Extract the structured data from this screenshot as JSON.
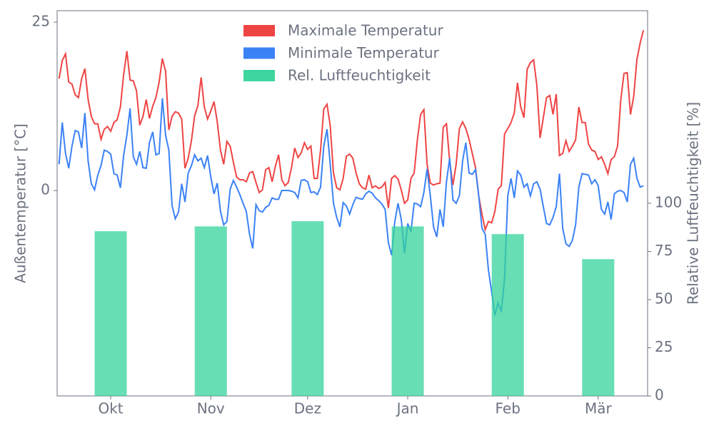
{
  "chart_data": {
    "type": "line",
    "legend": "upper center",
    "ylabel": "Außentemperatur [°C]",
    "y2label": "Relative Luftfeuchtigkeit [%]",
    "xlim": [
      13.4,
      196.3
    ],
    "xticks": [
      {
        "value": 30,
        "label": "Okt"
      },
      {
        "value": 61,
        "label": "Nov"
      },
      {
        "value": 91,
        "label": "Dez"
      },
      {
        "value": 122,
        "label": "Jan"
      },
      {
        "value": 153,
        "label": "Feb"
      },
      {
        "value": 181,
        "label": "Mär"
      }
    ],
    "ylim": [
      -30.5,
      26.7
    ],
    "yticks": [
      0,
      25
    ],
    "y2lim": [
      0,
      200
    ],
    "y2ticks": [
      0,
      25,
      50,
      75,
      100
    ],
    "x": [
      14,
      15,
      16,
      17,
      18,
      19,
      20,
      21,
      22,
      23,
      24,
      25,
      26,
      27,
      28,
      29,
      30,
      31,
      32,
      33,
      34,
      35,
      36,
      37,
      38,
      39,
      40,
      41,
      42,
      43,
      44,
      45,
      46,
      47,
      48,
      49,
      50,
      51,
      52,
      53,
      54,
      55,
      56,
      57,
      58,
      59,
      60,
      61,
      62,
      63,
      64,
      65,
      66,
      67,
      68,
      69,
      70,
      71,
      72,
      73,
      74,
      75,
      76,
      77,
      78,
      79,
      80,
      81,
      82,
      83,
      84,
      85,
      86,
      87,
      88,
      89,
      90,
      91,
      92,
      93,
      94,
      95,
      96,
      97,
      98,
      99,
      100,
      101,
      102,
      103,
      104,
      105,
      106,
      107,
      108,
      109,
      110,
      111,
      112,
      113,
      114,
      115,
      116,
      117,
      118,
      119,
      120,
      121,
      122,
      123,
      124,
      125,
      126,
      127,
      128,
      129,
      130,
      131,
      132,
      133,
      134,
      135,
      136,
      137,
      138,
      139,
      140,
      141,
      142,
      143,
      144,
      145,
      146,
      147,
      148,
      149,
      150,
      151,
      152,
      153,
      154,
      155,
      156,
      157,
      158,
      159,
      160,
      161,
      162,
      163,
      164,
      165,
      166,
      167,
      168,
      169,
      170,
      171,
      172,
      173,
      174,
      175,
      176,
      177,
      178,
      179,
      180,
      181,
      182,
      183,
      184,
      185,
      186,
      187,
      188,
      189,
      190,
      191,
      192,
      193,
      194,
      195
    ],
    "series": [
      {
        "name": "Maximale Temperatur",
        "color": "#ef4444",
        "values": [
          16.6,
          19.3,
          20.3,
          16.1,
          15.8,
          14.2,
          13.8,
          16.6,
          18.1,
          13.5,
          11.0,
          9.9,
          9.9,
          7.6,
          9.1,
          9.5,
          8.8,
          10.1,
          10.5,
          12.4,
          17.2,
          20.7,
          16.4,
          16.3,
          14.8,
          9.7,
          11.0,
          13.5,
          10.7,
          12.5,
          13.8,
          16.1,
          19.6,
          17.7,
          9.0,
          11.0,
          11.7,
          11.5,
          10.6,
          3.3,
          4.8,
          7.4,
          11.1,
          12.6,
          16.8,
          12.4,
          10.6,
          11.8,
          13.2,
          10.2,
          6.0,
          3.9,
          7.3,
          6.6,
          4.2,
          2.0,
          1.6,
          1.6,
          1.3,
          2.6,
          2.8,
          1.2,
          -0.3,
          0.1,
          3.1,
          3.4,
          1.3,
          3.6,
          5.3,
          1.6,
          0.7,
          1.2,
          3.4,
          6.3,
          4.9,
          5.6,
          7.1,
          6.1,
          6.6,
          1.8,
          1.8,
          6.0,
          12.1,
          12.8,
          9.6,
          2.6,
          0.4,
          0.1,
          1.8,
          5.1,
          5.4,
          4.8,
          2.6,
          1.0,
          0.4,
          0.2,
          2.3,
          0.4,
          0.7,
          0.3,
          0.5,
          1.2,
          -2.6,
          1.8,
          2.2,
          1.7,
          0.1,
          -1.9,
          -1.4,
          1.8,
          2.6,
          7.6,
          11.3,
          12.0,
          3.9,
          1.1,
          0.8,
          1.0,
          1.1,
          9.4,
          9.9,
          4.3,
          0.8,
          3.9,
          9.2,
          10.2,
          9.2,
          7.6,
          5.5,
          3.4,
          -0.8,
          -3.5,
          -5.8,
          -4.6,
          -4.8,
          -3.1,
          0.2,
          0.7,
          8.4,
          9.2,
          10.1,
          11.5,
          16.0,
          12.4,
          10.8,
          18.0,
          19.0,
          19.4,
          15.6,
          7.8,
          10.8,
          13.8,
          14.1,
          11.3,
          14.3,
          5.2,
          5.5,
          7.4,
          5.8,
          6.6,
          7.5,
          12.4,
          10.1,
          10.1,
          6.9,
          6.0,
          5.8,
          4.6,
          5.0,
          3.9,
          2.5,
          4.6,
          5.0,
          6.6,
          13.5,
          17.4,
          17.5,
          11.3,
          14.0,
          19.5,
          21.9,
          23.8
        ]
      },
      {
        "name": "Minimale Temperatur",
        "color": "#3b82f6",
        "values": [
          3.9,
          10.1,
          5.5,
          3.3,
          6.6,
          8.9,
          8.7,
          6.3,
          11.5,
          4.4,
          1.0,
          0.1,
          2.3,
          3.7,
          6.0,
          5.8,
          5.4,
          2.5,
          2.3,
          0.4,
          5.2,
          8.2,
          12.2,
          5.0,
          3.9,
          5.8,
          3.4,
          3.3,
          7.1,
          8.7,
          5.3,
          5.5,
          13.7,
          8.2,
          6.0,
          -2.2,
          -4.2,
          -3.2,
          1.0,
          -1.7,
          2.6,
          3.7,
          5.3,
          4.4,
          4.8,
          3.4,
          5.2,
          2.0,
          -0.5,
          1.1,
          -3.1,
          -5.1,
          -4.6,
          0.2,
          1.5,
          0.5,
          -0.6,
          -1.9,
          -3.1,
          -6.5,
          -8.6,
          -2.1,
          -3.0,
          -3.2,
          -2.5,
          -2.2,
          -1.1,
          -1.3,
          -1.3,
          0.0,
          0.0,
          0.0,
          -0.1,
          -0.3,
          -1.1,
          1.5,
          1.6,
          1.3,
          -0.3,
          -0.2,
          -0.6,
          0.5,
          6.6,
          9.1,
          3.9,
          -1.9,
          -4.0,
          -5.4,
          -1.8,
          -2.3,
          -3.5,
          -2.1,
          -1.0,
          -1.2,
          -1.3,
          -0.5,
          -0.1,
          -0.4,
          -1.1,
          -1.5,
          -2.0,
          -2.8,
          -7.7,
          -9.6,
          -4.6,
          -1.9,
          -4.3,
          -9.3,
          -4.9,
          -6.1,
          -1.9,
          -2.0,
          -2.4,
          -0.3,
          3.2,
          -0.8,
          -5.4,
          -6.9,
          -2.8,
          -5.4,
          1.3,
          4.8,
          -1.4,
          -1.9,
          -0.8,
          4.4,
          7.1,
          2.6,
          2.4,
          3.1,
          -0.8,
          -5.6,
          -6.5,
          -11.8,
          -15.1,
          -18.5,
          -16.7,
          -18.0,
          -13.0,
          -0.8,
          1.8,
          -1.1,
          2.9,
          2.3,
          0.5,
          1.0,
          -0.8,
          1.0,
          1.3,
          0.2,
          -2.4,
          -4.9,
          -5.1,
          -4.0,
          -2.4,
          2.5,
          -5.6,
          -7.9,
          -8.3,
          -7.4,
          -5.1,
          0.5,
          2.5,
          2.4,
          2.3,
          1.0,
          1.6,
          0.7,
          -2.8,
          -3.5,
          -1.7,
          -4.3,
          -0.5,
          -0.1,
          0.0,
          -0.3,
          -1.7,
          3.9,
          4.8,
          1.8,
          0.5,
          0.7
        ]
      },
      {
        "name": "Rel. Luftfeuchtigkeit",
        "color": "#34d399",
        "type": "bar",
        "axis": "y2",
        "x": [
          30,
          61,
          91,
          122,
          153,
          181
        ],
        "values": [
          85.5,
          88,
          90.7,
          88,
          84,
          71
        ]
      }
    ]
  }
}
